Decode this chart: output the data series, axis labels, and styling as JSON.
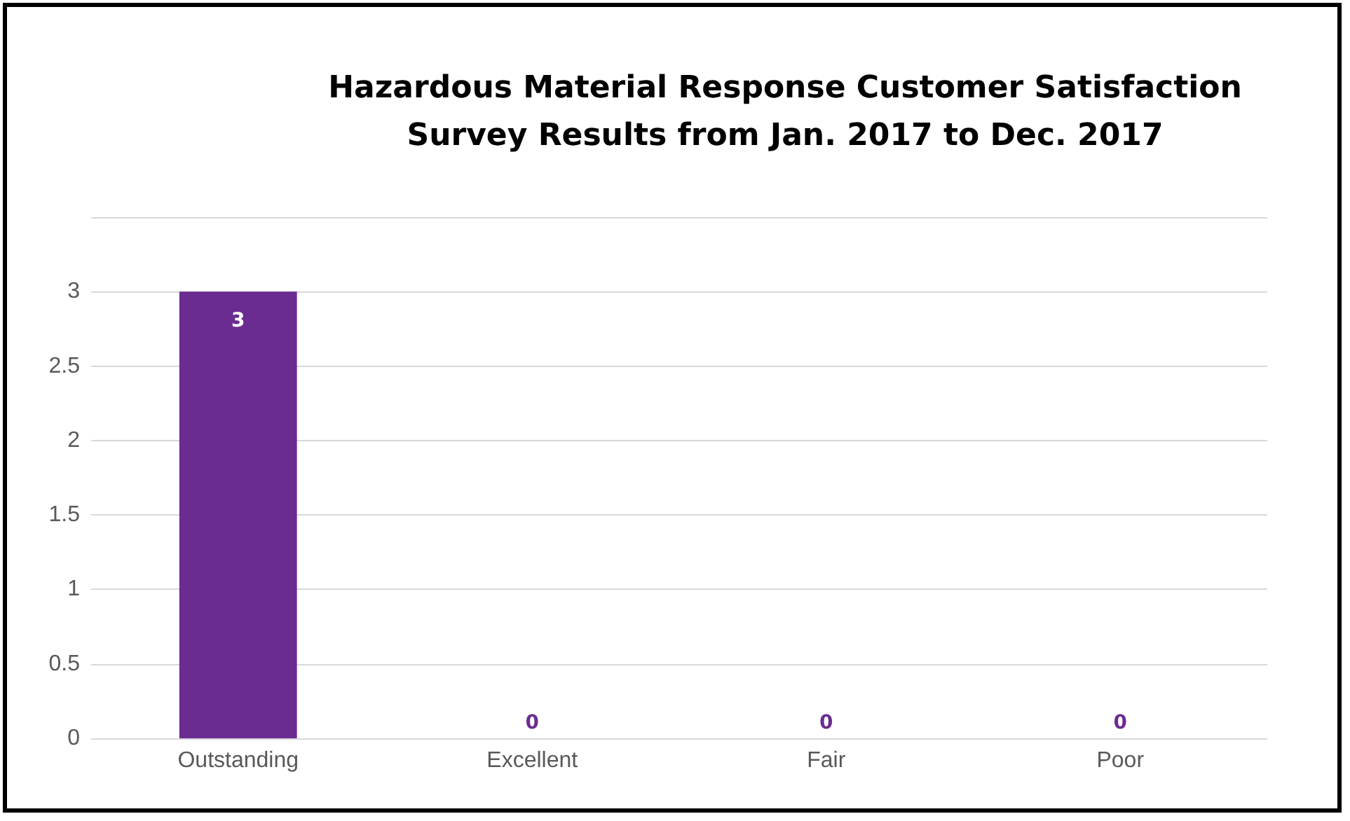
{
  "chart_data": {
    "type": "bar",
    "title": "Hazardous Material Response Customer Satisfaction\nSurvey Results from Jan. 2017 to Dec. 2017",
    "categories": [
      "Outstanding",
      "Excellent",
      "Fair",
      "Poor"
    ],
    "values": [
      3,
      0,
      0,
      0
    ],
    "color": "#6a2c91",
    "ylim": [
      0,
      3.5
    ],
    "yticks": [
      0,
      0.5,
      1,
      1.5,
      2,
      2.5,
      3,
      {
        "value": 3.5,
        "label": null
      }
    ],
    "grid": "y",
    "data_labels": true
  }
}
